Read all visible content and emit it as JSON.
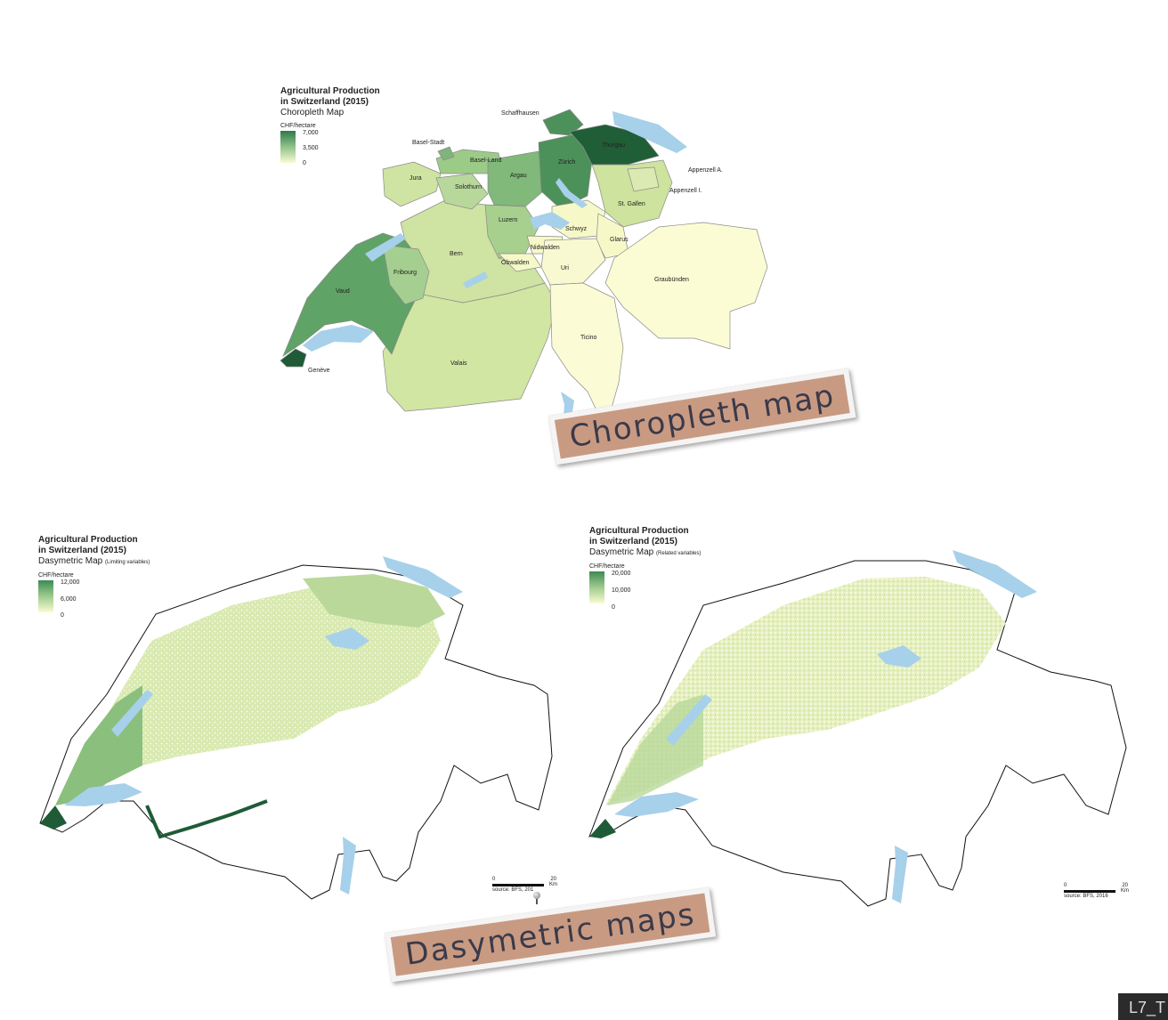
{
  "choropleth": {
    "title_line1": "Agricultural Production",
    "title_line2": "in Switzerland (2015)",
    "subtitle": "Choropleth Map",
    "unit": "CHF/hectare",
    "legend": [
      "7,000",
      "3,500",
      "0"
    ],
    "labels": {
      "schaffhausen": "Schaffhausen",
      "basel_stadt": "Basel-Stadt",
      "thurgau": "Thurgau",
      "basel_land": "Basel-Land",
      "zurich": "Zürich",
      "appenzell_a": "Appenzell A.",
      "jura": "Jura",
      "argau": "Argau",
      "appenzell_i": "Appenzell I.",
      "solothurn": "Solothurn",
      "st_gallen": "St. Gallen",
      "luzern": "Luzern",
      "schwyz": "Schwyz",
      "glarus": "Glarus",
      "nidwalden": "Nidwalden",
      "bern": "Bern",
      "obwalden": "Obwalden",
      "uri": "Uri",
      "fribourg": "Fribourg",
      "graubunden": "Graubünden",
      "vaud": "Vaud",
      "ticino": "Ticino",
      "geneve": "Genève",
      "valais": "Valais"
    }
  },
  "dasymetric_limiting": {
    "title_line1": "Agricultural Production",
    "title_line2": "in Switzerland (2015)",
    "subtitle": "Dasymetric Map",
    "subtitle_note": "(Limiting variables)",
    "unit": "CHF/hectare",
    "legend": [
      "12,000",
      "6,000",
      "0"
    ],
    "scale_start": "0",
    "scale_end": "20",
    "scale_unit": "Km",
    "source": "source: BFS, 201"
  },
  "dasymetric_related": {
    "title_line1": "Agricultural Production",
    "title_line2": "in Switzerland (2015)",
    "subtitle": "Dasymetric Map",
    "subtitle_note": "(Related variables)",
    "unit": "CHF/hectare",
    "legend": [
      "20,000",
      "10,000",
      "0"
    ],
    "scale_start": "0",
    "scale_end": "20",
    "scale_unit": "Km",
    "source": "source: BFS, 2016"
  },
  "notes": {
    "choropleth": "Choropleth map",
    "dasymetric": "Dasymetric maps"
  },
  "corner_tag": "L7_T",
  "colors": {
    "lake": "#a7d0ea",
    "low": "#fafcd2",
    "mid": "#cfe4a4",
    "high": "#67a96c",
    "max": "#1e5b36",
    "note_bg": "#c99a82"
  }
}
